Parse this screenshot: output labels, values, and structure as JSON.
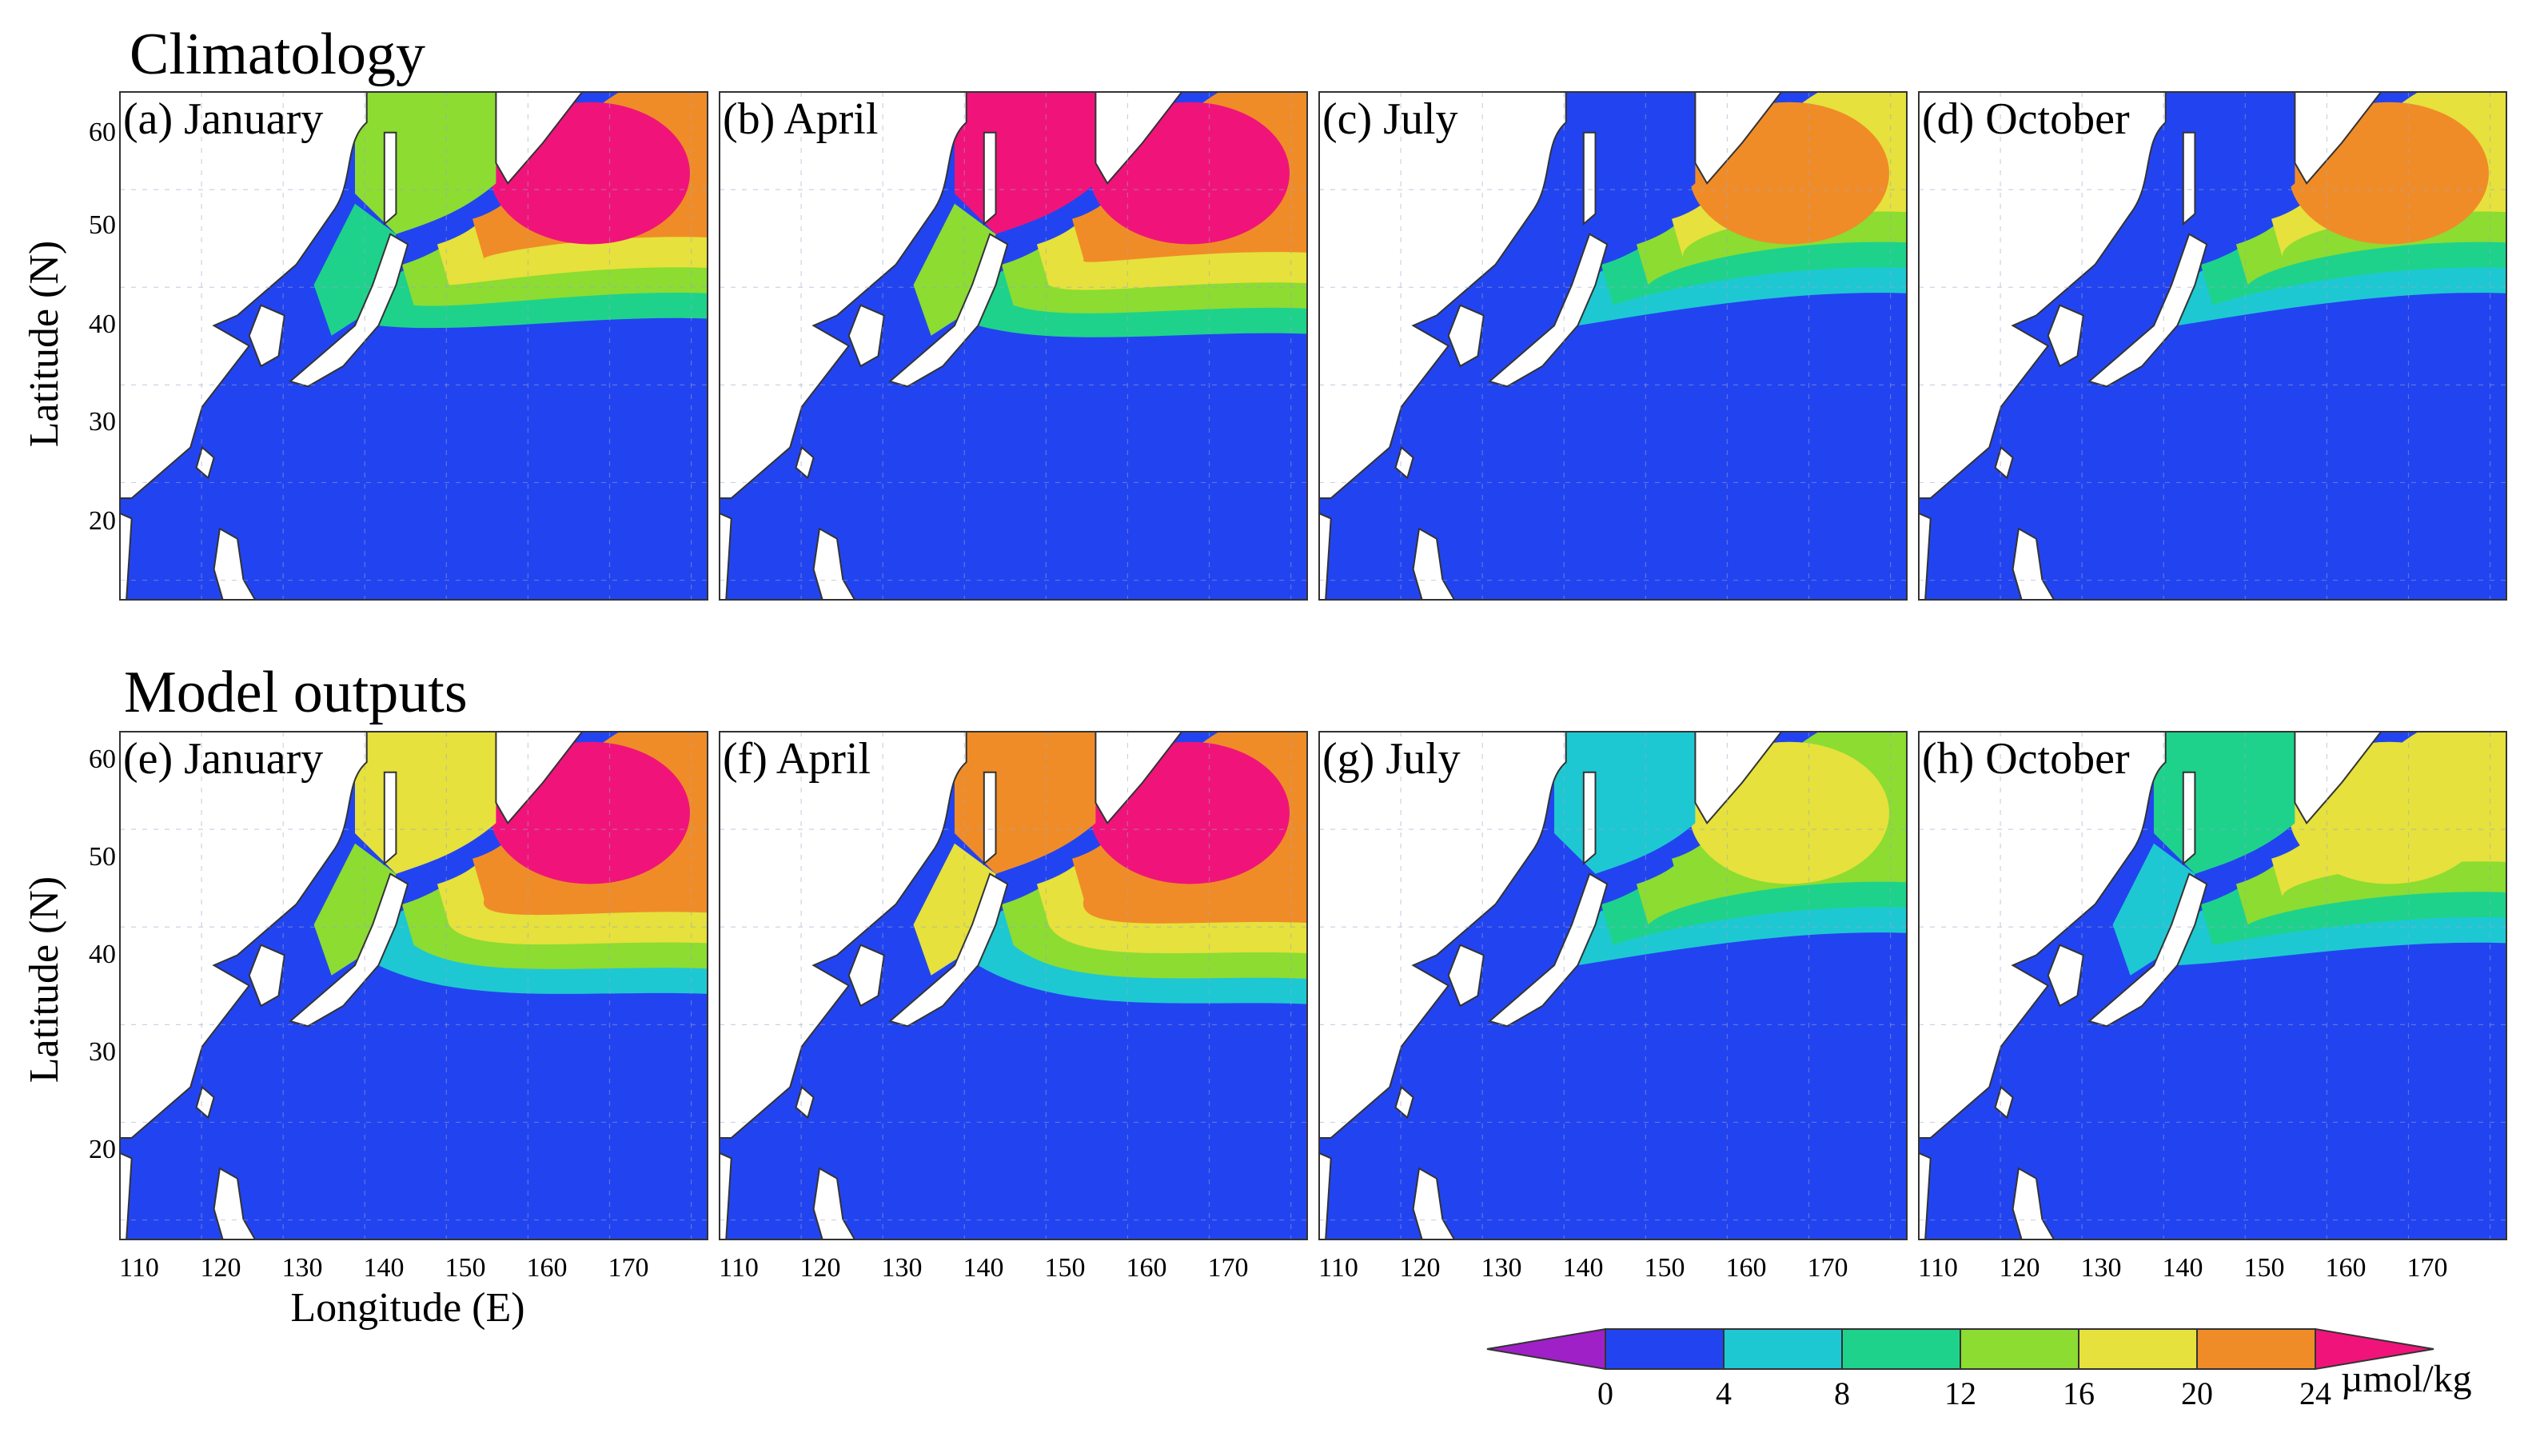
{
  "sections": {
    "top_title": "Climatology",
    "bottom_title": "Model outputs"
  },
  "axes": {
    "ylabel": "Latitude (N)",
    "xlabel": "Longitude (E)",
    "lat_ticks": [
      "60",
      "50",
      "40",
      "30",
      "20"
    ],
    "lon_ticks": [
      "110",
      "120",
      "130",
      "140",
      "150",
      "160",
      "170"
    ]
  },
  "panels": [
    {
      "label": "(a) January",
      "row": "climatology",
      "month": "January"
    },
    {
      "label": "(b) April",
      "row": "climatology",
      "month": "April"
    },
    {
      "label": "(c) July",
      "row": "climatology",
      "month": "July"
    },
    {
      "label": "(d) October",
      "row": "climatology",
      "month": "October"
    },
    {
      "label": "(e) January",
      "row": "model",
      "month": "January"
    },
    {
      "label": "(f) April",
      "row": "model",
      "month": "April"
    },
    {
      "label": "(g) July",
      "row": "model",
      "month": "July"
    },
    {
      "label": "(h) October",
      "row": "model",
      "month": "October"
    }
  ],
  "colorbar": {
    "unit": "µmol/kg",
    "ticks": [
      "0",
      "4",
      "8",
      "12",
      "16",
      "20",
      "24"
    ],
    "colors": [
      "#a020c8",
      "#2244f0",
      "#1ec8d2",
      "#1ed28c",
      "#8cdc32",
      "#e6e13c",
      "#f08c28",
      "#f0147a"
    ]
  },
  "colors": {
    "ocean": "#2244f0",
    "land": "#ffffff",
    "coast": "#333333"
  }
}
